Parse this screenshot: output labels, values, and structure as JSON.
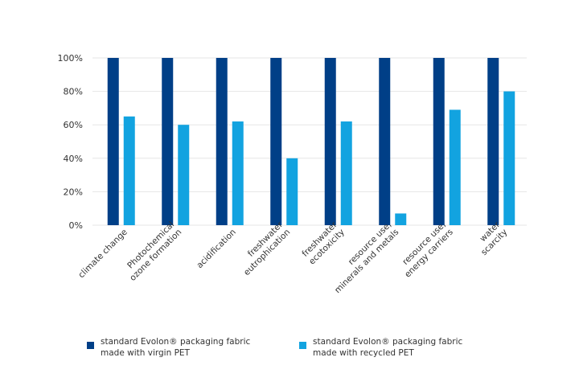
{
  "chart_data": {
    "type": "bar",
    "categories": [
      [
        "climate change"
      ],
      [
        "Photochemical",
        "ozone formation"
      ],
      [
        "acidification"
      ],
      [
        "freshwater",
        "eutrophication"
      ],
      [
        "freshwater",
        "ecotoxicity"
      ],
      [
        "resource use,",
        "minerals and metals"
      ],
      [
        "resource use,",
        "energy carriers"
      ],
      [
        "water",
        "scarcity"
      ]
    ],
    "series": [
      {
        "legend_line1": "standard Evolon® packaging fabric",
        "legend_line2": "made with virgin PET",
        "color": "#003f87",
        "values": [
          100,
          100,
          100,
          100,
          100,
          100,
          100,
          100
        ]
      },
      {
        "legend_line1": "standard Evolon® packaging fabric",
        "legend_line2": "made with recycled PET",
        "color": "#12a3e0",
        "values": [
          65,
          60,
          62,
          40,
          62,
          7,
          69,
          80
        ]
      }
    ],
    "yticks": [
      "0%",
      "20%",
      "40%",
      "60%",
      "80%",
      "100%"
    ],
    "ylim": [
      0,
      100
    ],
    "grid": true,
    "legend_position": "bottom"
  }
}
